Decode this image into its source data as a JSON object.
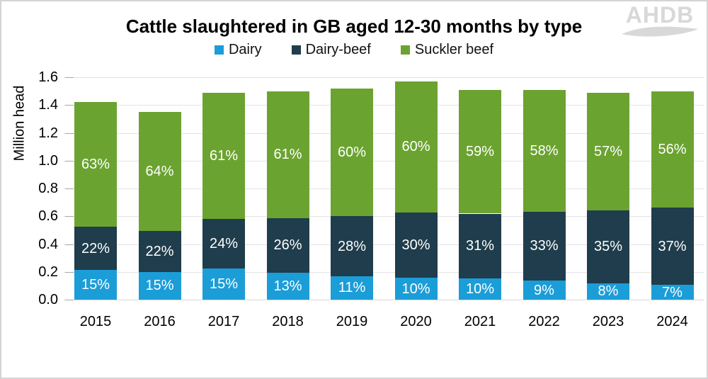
{
  "logo": {
    "text": "AHDB"
  },
  "chart_data": {
    "type": "bar",
    "stacked": true,
    "title": "Cattle slaughtered in GB aged 12-30 months by type",
    "ylabel": "Million head",
    "xlabel": "",
    "ylim": [
      0,
      1.6
    ],
    "ytick_step": 0.2,
    "ytick_labels": [
      "0.0",
      "0.2",
      "0.4",
      "0.6",
      "0.8",
      "1.0",
      "1.2",
      "1.4",
      "1.6"
    ],
    "grid": "horizontal",
    "legend_position": "top",
    "value_label_suffix": "%",
    "categories": [
      "2015",
      "2016",
      "2017",
      "2018",
      "2019",
      "2020",
      "2021",
      "2022",
      "2023",
      "2024"
    ],
    "totals_million_head": [
      1.42,
      1.35,
      1.49,
      1.5,
      1.52,
      1.57,
      1.51,
      1.51,
      1.49,
      1.5
    ],
    "series": [
      {
        "name": "Dairy",
        "color": "#1B9DD8",
        "percent": [
          15,
          15,
          15,
          13,
          11,
          10,
          10,
          9,
          8,
          7
        ]
      },
      {
        "name": "Dairy-beef",
        "color": "#1F3D4C",
        "percent": [
          22,
          22,
          24,
          26,
          28,
          30,
          31,
          33,
          35,
          37
        ]
      },
      {
        "name": "Suckler beef",
        "color": "#6BA330",
        "percent": [
          63,
          64,
          61,
          61,
          60,
          60,
          59,
          58,
          57,
          56
        ]
      }
    ]
  }
}
